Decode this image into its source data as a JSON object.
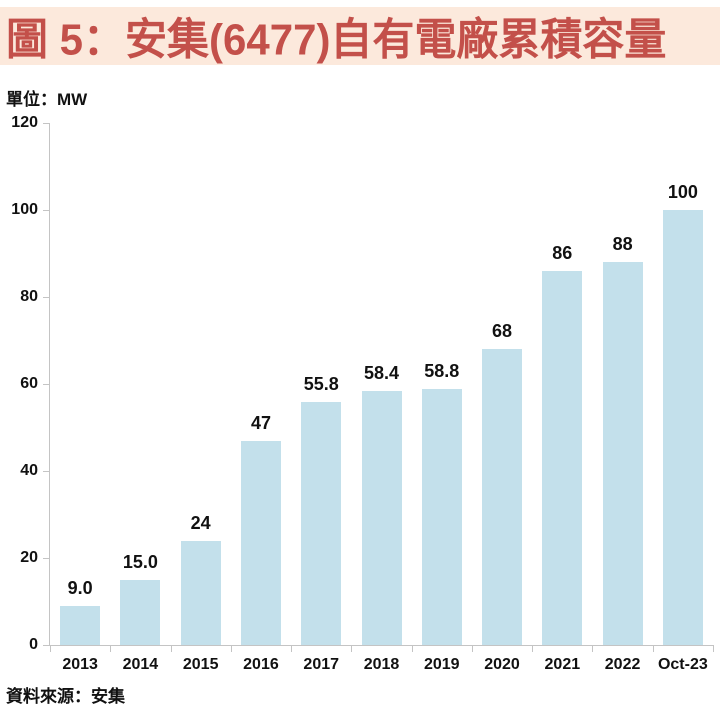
{
  "header": {
    "title": "圖 5：安集(6477)自有電廠累積容量"
  },
  "unit_label": "單位：MW",
  "source_label": "資料來源：安集",
  "colors": {
    "title_background": "#fce9dc",
    "title_text": "#c3504a",
    "bar_fill": "#c3e0eb",
    "axis_line": "#c4c4c4",
    "label_text": "#111111"
  },
  "chart_data": {
    "type": "bar",
    "title": "圖 5：安集(6477)自有電廠累積容量",
    "unit": "MW",
    "xlabel": "",
    "ylabel": "單位：MW",
    "categories": [
      "2013",
      "2014",
      "2015",
      "2016",
      "2017",
      "2018",
      "2019",
      "2020",
      "2021",
      "2022",
      "Oct-23"
    ],
    "values": [
      9.0,
      15.0,
      24,
      47,
      55.8,
      58.4,
      58.8,
      68,
      86,
      88,
      100
    ],
    "value_labels": [
      "9.0",
      "15.0",
      "24",
      "47",
      "55.8",
      "58.4",
      "58.8",
      "68",
      "86",
      "88",
      "100"
    ],
    "ylim": [
      0,
      120
    ],
    "yticks": [
      0,
      20,
      40,
      60,
      80,
      100,
      120
    ],
    "grid": false,
    "legend_position": "none",
    "source": "資料來源：安集"
  }
}
